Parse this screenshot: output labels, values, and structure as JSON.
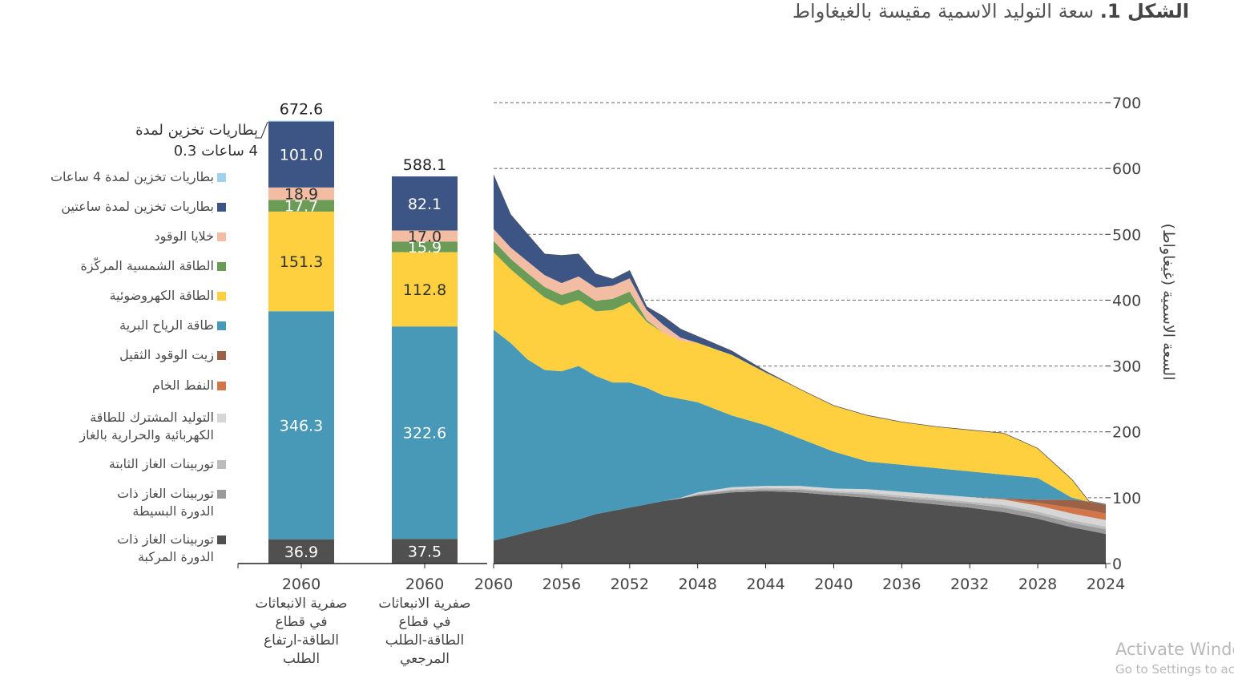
{
  "title": {
    "prefix": "الشكل 1.",
    "text": " سعة التوليد الاسمية مقيسة بالغيغاواط"
  },
  "callout": {
    "text": "بطاريات تخزين لمدة\n4 ساعات 0.3"
  },
  "watermark": {
    "line1": "Activate Windows",
    "line2": "Go to Settings to activate Windows."
  },
  "chart_data": [
    {
      "type": "bar",
      "stacked": true,
      "categories": [
        "2060\nصفرية الانبعاثات\nفي قطاع\nالطاقة-ارتفاع\nالطلب",
        "2060\nصفرية الانبعاثات\nفي قطاع\nالطاقة-الطلب\nالمرجعي"
      ],
      "series": [
        {
          "name": "توربينات الغاز ذات الدورة المركبة",
          "color": "#505050",
          "values": [
            36.9,
            37.5
          ],
          "labels": [
            "36.9",
            "37.5"
          ],
          "label_color": "#ffffff"
        },
        {
          "name": "طاقة الرياح البرية",
          "color": "#4898b7",
          "values": [
            346.3,
            322.6
          ],
          "labels": [
            "346.3",
            "322.6"
          ],
          "label_color": "#ffffff"
        },
        {
          "name": "الطاقة الكهروضوئية",
          "color": "#fecf3e",
          "values": [
            151.3,
            112.8
          ],
          "labels": [
            "151.3",
            "112.8"
          ],
          "label_color": "#333333"
        },
        {
          "name": "الطاقة الشمسية المركّزة",
          "color": "#6a9c58",
          "values": [
            17.7,
            15.9
          ],
          "labels": [
            "17.7",
            "15.9"
          ],
          "label_color": "#ffffff"
        },
        {
          "name": "خلايا الوقود",
          "color": "#f2bda3",
          "values": [
            18.9,
            17.0
          ],
          "labels": [
            "18.9",
            "17.0"
          ],
          "label_color": "#333333"
        },
        {
          "name": "بطاريات تخزين لمدة ساعتين",
          "color": "#3d5585",
          "values": [
            101.0,
            82.1
          ],
          "labels": [
            "101.0",
            "82.1"
          ],
          "label_color": "#ffffff"
        },
        {
          "name": "بطاريات تخزين لمدة 4 ساعات",
          "color": "#9fd2ec",
          "values": [
            0.3,
            0.0
          ],
          "labels": [
            "",
            ""
          ],
          "label_color": "#333333"
        }
      ],
      "totals": [
        "672.6",
        "588.1"
      ],
      "ylim": [
        0,
        700
      ]
    },
    {
      "type": "area",
      "stacked": true,
      "x": [
        2060,
        2059,
        2058,
        2057,
        2056,
        2055,
        2054,
        2053,
        2052,
        2051,
        2050,
        2049,
        2048,
        2046,
        2044,
        2042,
        2040,
        2038,
        2036,
        2034,
        2032,
        2030,
        2028,
        2026,
        2025,
        2024
      ],
      "x_ticks": [
        "2060",
        "2056",
        "2052",
        "2048",
        "2044",
        "2040",
        "2036",
        "2032",
        "2028",
        "2024"
      ],
      "x_tick_values": [
        2060,
        2056,
        2052,
        2048,
        2044,
        2040,
        2036,
        2032,
        2028,
        2024
      ],
      "xlim": [
        2060,
        2024
      ],
      "ylim": [
        0,
        700
      ],
      "y_ticks": [
        "0",
        "100",
        "200",
        "300",
        "400",
        "500",
        "600",
        "700"
      ],
      "y_tick_values": [
        0,
        100,
        200,
        300,
        400,
        500,
        600,
        700
      ],
      "ylabel": "السعة الاسمية (غيغاواط)",
      "grid": true,
      "series": [
        {
          "name": "توربينات الغاز ذات الدورة المركبة",
          "color": "#505050",
          "values": [
            35,
            41,
            48,
            54,
            60,
            67,
            75,
            80,
            85,
            90,
            95,
            99,
            103,
            108,
            110,
            108,
            104,
            100,
            95,
            90,
            85,
            78,
            68,
            55,
            50,
            45
          ]
        },
        {
          "name": "توربينات الغاز ذات الدورة البسيطة",
          "color": "#9a9a9a",
          "values": [
            0,
            0,
            0,
            0,
            0,
            0,
            0,
            0,
            0,
            0,
            0,
            0,
            2,
            3,
            3,
            4,
            4,
            5,
            5,
            6,
            6,
            7,
            7,
            7,
            7,
            7
          ]
        },
        {
          "name": "توربينات الغاز الثابتة",
          "color": "#bcbcbc",
          "values": [
            0,
            0,
            0,
            0,
            0,
            0,
            0,
            0,
            0,
            0,
            0,
            0,
            1,
            2,
            2,
            2,
            2,
            3,
            3,
            3,
            3,
            4,
            4,
            4,
            4,
            4
          ]
        },
        {
          "name": "التوليد المشترك للطاقة الكهربائية والحرارية بالغاز",
          "color": "#d6d6d6",
          "values": [
            0,
            0,
            0,
            0,
            0,
            0,
            0,
            0,
            0,
            0,
            0,
            1,
            2,
            3,
            3,
            4,
            4,
            5,
            6,
            6,
            7,
            8,
            9,
            10,
            10,
            10
          ]
        },
        {
          "name": "النفط الخام",
          "color": "#d2764a",
          "values": [
            0,
            0,
            0,
            0,
            0,
            0,
            0,
            0,
            0,
            0,
            0,
            0,
            0,
            0,
            0,
            0,
            0,
            0,
            0,
            0,
            0,
            1,
            4,
            9,
            10,
            10
          ]
        },
        {
          "name": "زيت الوقود الثقيل",
          "color": "#9b6248",
          "values": [
            0,
            0,
            0,
            0,
            0,
            0,
            0,
            0,
            0,
            0,
            0,
            0,
            0,
            0,
            0,
            0,
            0,
            0,
            0,
            0,
            0,
            1,
            5,
            12,
            13,
            13
          ]
        },
        {
          "name": "طاقة الرياح البرية",
          "color": "#4898b7",
          "values": [
            320,
            294,
            262,
            240,
            232,
            233,
            210,
            195,
            190,
            177,
            160,
            150,
            137,
            109,
            92,
            72,
            56,
            42,
            41,
            40,
            39,
            36,
            33,
            3,
            0,
            1
          ]
        },
        {
          "name": "الطاقة الكهروضوئية",
          "color": "#fecf3e",
          "values": [
            118,
            112,
            115,
            110,
            100,
            100,
            98,
            110,
            122,
            100,
            95,
            88,
            90,
            92,
            80,
            75,
            70,
            70,
            65,
            63,
            63,
            63,
            45,
            28,
            1,
            0
          ]
        },
        {
          "name": "الطاقة الشمسية المركّزة",
          "color": "#6a9c58",
          "values": [
            17,
            16,
            16,
            16,
            16,
            16,
            16,
            17,
            16,
            3,
            0,
            0,
            0,
            0,
            0,
            0,
            0,
            0,
            0,
            0,
            0,
            0,
            0,
            0,
            0,
            0
          ]
        },
        {
          "name": "خلايا الوقود",
          "color": "#f2bda3",
          "values": [
            18,
            17,
            18,
            18,
            18,
            20,
            20,
            20,
            20,
            15,
            12,
            5,
            0,
            0,
            0,
            0,
            0,
            0,
            0,
            0,
            0,
            0,
            0,
            0,
            0,
            0
          ]
        },
        {
          "name": "بطاريات تخزين لمدة ساعتين",
          "color": "#3d5585",
          "values": [
            82,
            50,
            41,
            32,
            42,
            34,
            21,
            10,
            12,
            5,
            13,
            13,
            10,
            6,
            2,
            0,
            0,
            0,
            0,
            0,
            0,
            0,
            0,
            0,
            0,
            0
          ]
        },
        {
          "name": "بطاريات تخزين لمدة 4 ساعات",
          "color": "#9fd2ec",
          "values": [
            0,
            0,
            0,
            0,
            0,
            0,
            0,
            0,
            0,
            0,
            0,
            0,
            0,
            0,
            0,
            0,
            0,
            0,
            0,
            0,
            0,
            0,
            0,
            0,
            0,
            0
          ]
        }
      ]
    }
  ],
  "legend": [
    {
      "label": "بطاريات تخزين لمدة 4 ساعات",
      "color": "#9fd2ec"
    },
    {
      "label": "بطاريات تخزين لمدة ساعتين",
      "color": "#3d5585"
    },
    {
      "label": "خلايا الوقود",
      "color": "#f2bda3"
    },
    {
      "label": "الطاقة الشمسية المركّزة",
      "color": "#6a9c58"
    },
    {
      "label": "الطاقة الكهروضوئية",
      "color": "#fecf3e"
    },
    {
      "label": "طاقة الرياح البرية",
      "color": "#4898b7"
    },
    {
      "label": "زيت الوقود الثقيل",
      "color": "#9b6248"
    },
    {
      "label": "النفط الخام",
      "color": "#d2764a"
    },
    {
      "label": "التوليد المشترك للطاقة\nالكهربائية والحرارية بالغاز",
      "color": "#d6d6d6"
    },
    {
      "label": "توربينات الغاز الثابتة",
      "color": "#bcbcbc"
    },
    {
      "label": "توربينات الغاز ذات\nالدورة البسيطة",
      "color": "#9a9a9a"
    },
    {
      "label": "توربينات الغاز ذات\nالدورة المركبة",
      "color": "#505050"
    }
  ]
}
